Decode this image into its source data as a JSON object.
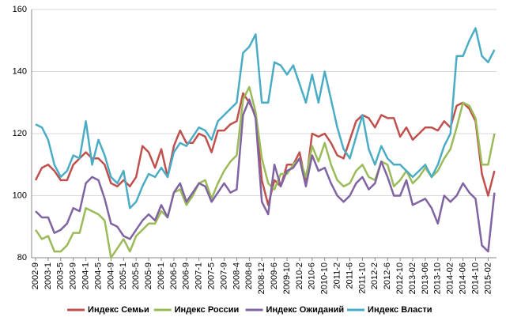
{
  "chart_data": {
    "type": "line",
    "categories": [
      "2002-9",
      null,
      "2003-1",
      null,
      "2003-5",
      null,
      "2003-9",
      null,
      "2004-1",
      null,
      "2004-5",
      null,
      "2004-9",
      null,
      "2005-1",
      null,
      "2005-5",
      null,
      "2005-9",
      null,
      "2006-1",
      null,
      "2006-5",
      null,
      "2006-9",
      null,
      "2007-1",
      null,
      "2007-5",
      null,
      "2007-9",
      null,
      "2008-4",
      null,
      "2008-8",
      null,
      "2008-12",
      null,
      "2009-6",
      null,
      "2009-10",
      null,
      "2010-2",
      null,
      "2010-6",
      null,
      "2010-10",
      null,
      "2011-2",
      null,
      "2011-6",
      null,
      "2011-10",
      null,
      "2012-2",
      null,
      "2012-6",
      null,
      "2012-10",
      null,
      "2013-02",
      null,
      "2013-06",
      null,
      "2013-10",
      null,
      "2014-02",
      null,
      "2014-06",
      null,
      "2014-10",
      null,
      "2015-02",
      null
    ],
    "series": [
      {
        "name": "Индекс Семьи",
        "color": "#c0504d",
        "values": [
          105,
          109,
          110,
          108,
          105,
          105,
          110,
          112,
          114,
          112,
          112,
          110,
          104,
          103,
          105,
          103,
          106,
          116,
          114,
          109,
          115,
          106,
          116,
          121,
          117,
          117,
          120,
          119,
          114,
          121,
          121,
          123,
          124,
          133,
          130,
          126,
          105,
          97,
          105,
          103,
          110,
          110,
          114,
          104,
          120,
          119,
          120,
          117,
          113,
          112,
          118,
          124,
          126,
          125,
          122,
          126,
          125,
          125,
          119,
          122,
          118,
          120,
          122,
          122,
          121,
          124,
          122,
          129,
          130,
          128,
          124,
          107,
          100,
          108
        ]
      },
      {
        "name": "Индекс России",
        "color": "#9bbb59",
        "values": [
          89,
          86,
          87,
          82,
          82,
          84,
          88,
          88,
          96,
          95,
          94,
          92,
          80,
          83,
          86,
          82,
          87,
          89,
          91,
          91,
          95,
          93,
          101,
          102,
          97,
          100,
          104,
          105,
          99,
          104,
          108,
          111,
          113,
          131,
          135,
          127,
          112,
          104,
          102,
          107,
          107,
          110,
          112,
          106,
          116,
          111,
          117,
          110,
          105,
          103,
          104,
          108,
          110,
          106,
          105,
          111,
          110,
          103,
          105,
          108,
          104,
          106,
          109,
          106,
          108,
          112,
          115,
          122,
          130,
          129,
          125,
          110,
          110,
          120
        ]
      },
      {
        "name": "Индекс Ожиданий",
        "color": "#8064a2",
        "values": [
          95,
          93,
          93,
          88,
          89,
          91,
          96,
          95,
          104,
          106,
          105,
          99,
          91,
          90,
          87,
          86,
          89,
          92,
          94,
          92,
          97,
          93,
          101,
          104,
          98,
          101,
          104,
          103,
          98,
          101,
          104,
          101,
          102,
          126,
          131,
          125,
          98,
          94,
          110,
          103,
          108,
          109,
          112,
          103,
          113,
          108,
          109,
          104,
          100,
          98,
          100,
          104,
          106,
          102,
          104,
          111,
          106,
          100,
          100,
          105,
          97,
          98,
          99,
          96,
          91,
          100,
          98,
          100,
          104,
          101,
          99,
          84,
          82,
          101
        ]
      },
      {
        "name": "Индекс Власти",
        "color": "#4bacc6",
        "values": [
          123,
          122,
          118,
          110,
          106,
          108,
          113,
          112,
          124,
          110,
          118,
          113,
          106,
          104,
          108,
          96,
          98,
          103,
          107,
          106,
          109,
          106,
          114,
          117,
          116,
          119,
          122,
          121,
          118,
          124,
          126,
          128,
          130,
          146,
          148,
          152,
          130,
          130,
          143,
          142,
          139,
          142,
          136,
          130,
          139,
          130,
          140,
          131,
          122,
          115,
          112,
          119,
          126,
          115,
          110,
          116,
          112,
          110,
          110,
          108,
          106,
          108,
          110,
          106,
          110,
          116,
          120,
          145,
          145,
          150,
          154,
          145,
          143,
          147
        ]
      }
    ],
    "ylim": [
      80,
      160
    ],
    "yticks": [
      80,
      100,
      120,
      140,
      160
    ],
    "grid": true,
    "legend": "bottom"
  }
}
